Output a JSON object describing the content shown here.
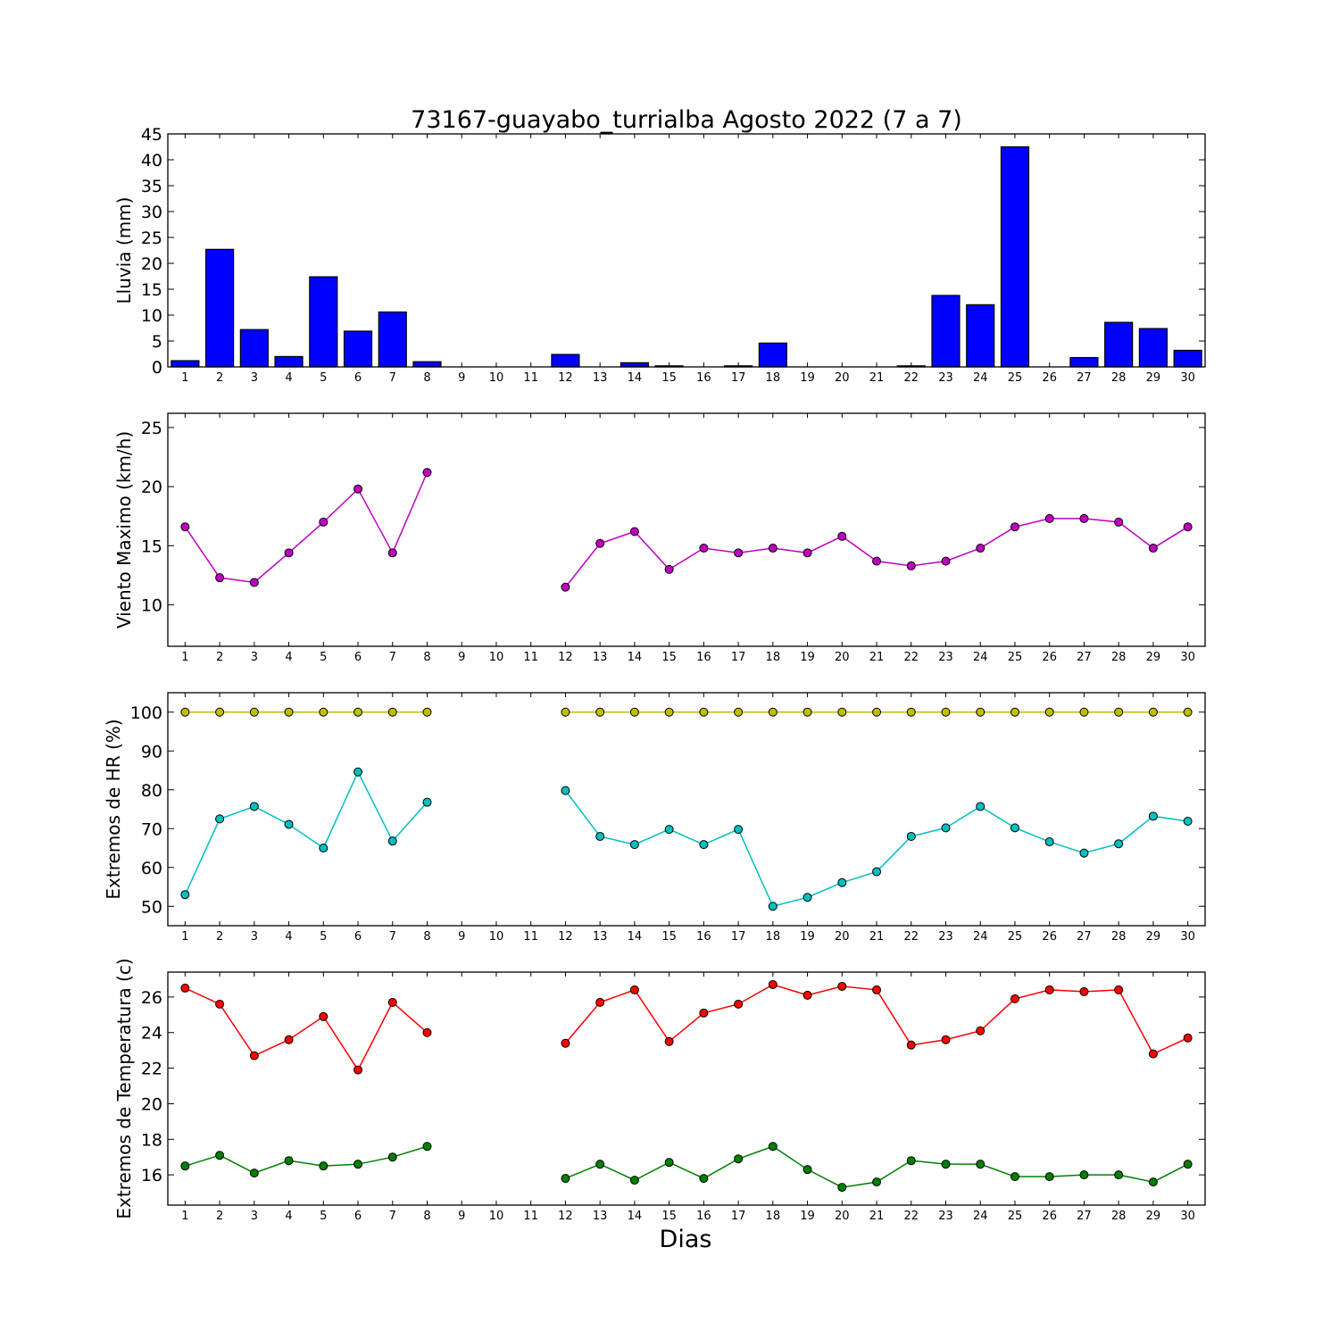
{
  "figure": {
    "title": "73167-guayabo_turrialba Agosto 2022  (7 a 7)",
    "xlabel": "Dias"
  },
  "chart_data": [
    {
      "type": "bar",
      "ylabel": "Lluvia (mm)",
      "ylim": [
        0,
        45
      ],
      "yticks": [
        0,
        5,
        10,
        15,
        20,
        25,
        30,
        35,
        40,
        45
      ],
      "xlim": [
        0.5,
        30.5
      ],
      "categories": [
        1,
        2,
        3,
        4,
        5,
        6,
        7,
        8,
        9,
        10,
        11,
        12,
        13,
        14,
        15,
        16,
        17,
        18,
        19,
        20,
        21,
        22,
        23,
        24,
        25,
        26,
        27,
        28,
        29,
        30
      ],
      "series": [
        {
          "color": "#0000ff",
          "values": [
            1.2,
            22.7,
            7.2,
            2.0,
            17.4,
            6.9,
            10.6,
            1.0,
            0,
            0,
            0,
            2.4,
            0,
            0.8,
            0.2,
            0,
            0.2,
            4.6,
            0,
            0,
            0,
            0.2,
            13.8,
            12.0,
            42.5,
            0,
            1.8,
            8.6,
            7.4,
            3.2
          ]
        }
      ],
      "grid": false
    },
    {
      "type": "line",
      "ylabel": "Viento Maximo (km/h)",
      "ylim": [
        6.5,
        26.2
      ],
      "yticks": [
        10,
        15,
        20,
        25
      ],
      "xlim": [
        0.5,
        30.5
      ],
      "series": [
        {
          "color": "#bf00bf",
          "x": [
            1,
            2,
            3,
            4,
            5,
            6,
            7,
            8,
            9,
            10,
            11,
            12,
            13,
            14,
            15,
            16,
            17,
            18,
            19,
            20,
            21,
            22,
            23,
            24,
            25,
            26,
            27,
            28,
            29,
            30
          ],
          "y": [
            16.6,
            12.3,
            11.9,
            14.4,
            17.0,
            19.8,
            14.4,
            21.2,
            null,
            null,
            null,
            11.5,
            15.2,
            16.2,
            13.0,
            14.8,
            14.4,
            14.8,
            14.4,
            15.8,
            13.7,
            13.3,
            13.7,
            14.8,
            16.6,
            17.3,
            17.3,
            17.0,
            14.8,
            16.6
          ]
        }
      ],
      "grid": false
    },
    {
      "type": "line",
      "ylabel": "Extremos de HR (%)",
      "ylim": [
        45,
        105
      ],
      "yticks": [
        50,
        60,
        70,
        80,
        90,
        100
      ],
      "xlim": [
        0.5,
        30.5
      ],
      "series": [
        {
          "color": "#bfbf00",
          "x": [
            1,
            2,
            3,
            4,
            5,
            6,
            7,
            8,
            9,
            10,
            11,
            12,
            13,
            14,
            15,
            16,
            17,
            18,
            19,
            20,
            21,
            22,
            23,
            24,
            25,
            26,
            27,
            28,
            29,
            30
          ],
          "y": [
            100,
            100,
            100,
            100,
            100,
            100,
            100,
            100,
            null,
            null,
            null,
            100,
            100,
            100,
            100,
            100,
            100,
            100,
            100,
            100,
            100,
            100,
            100,
            100,
            100,
            100,
            100,
            100,
            100,
            100
          ]
        },
        {
          "color": "#00bfbf",
          "x": [
            1,
            2,
            3,
            4,
            5,
            6,
            7,
            8,
            9,
            10,
            11,
            12,
            13,
            14,
            15,
            16,
            17,
            18,
            19,
            20,
            21,
            22,
            23,
            24,
            25,
            26,
            27,
            28,
            29,
            30
          ],
          "y": [
            53,
            72.5,
            75.7,
            71.1,
            65,
            84.6,
            66.8,
            76.8,
            null,
            null,
            null,
            79.8,
            68,
            65.9,
            69.8,
            65.9,
            69.8,
            50,
            52.3,
            56.1,
            58.9,
            68,
            70.2,
            75.7,
            70.2,
            66.6,
            63.7,
            66.1,
            73.2,
            71.9
          ]
        }
      ],
      "grid": false
    },
    {
      "type": "line",
      "ylabel": "Extremos de Temperatura (c)",
      "ylim": [
        14.3,
        27.4
      ],
      "yticks": [
        16,
        18,
        20,
        22,
        24,
        26
      ],
      "xlim": [
        0.5,
        30.5
      ],
      "series": [
        {
          "color": "#ff0000",
          "x": [
            1,
            2,
            3,
            4,
            5,
            6,
            7,
            8,
            9,
            10,
            11,
            12,
            13,
            14,
            15,
            16,
            17,
            18,
            19,
            20,
            21,
            22,
            23,
            24,
            25,
            26,
            27,
            28,
            29,
            30
          ],
          "y": [
            26.5,
            25.6,
            22.7,
            23.6,
            24.9,
            21.9,
            25.7,
            24.0,
            null,
            null,
            null,
            23.4,
            25.7,
            26.4,
            23.5,
            25.1,
            25.6,
            26.7,
            26.1,
            26.6,
            26.4,
            23.3,
            23.6,
            24.1,
            25.9,
            26.4,
            26.3,
            26.4,
            22.8,
            23.7
          ]
        },
        {
          "color": "#008000",
          "x": [
            1,
            2,
            3,
            4,
            5,
            6,
            7,
            8,
            9,
            10,
            11,
            12,
            13,
            14,
            15,
            16,
            17,
            18,
            19,
            20,
            21,
            22,
            23,
            24,
            25,
            26,
            27,
            28,
            29,
            30
          ],
          "y": [
            16.5,
            17.1,
            16.1,
            16.8,
            16.5,
            16.6,
            17.0,
            17.6,
            null,
            null,
            null,
            15.8,
            16.6,
            15.7,
            16.7,
            15.8,
            16.9,
            17.6,
            16.3,
            15.3,
            15.6,
            16.8,
            16.6,
            16.6,
            15.9,
            15.9,
            16.0,
            16.0,
            15.6,
            16.6
          ]
        }
      ],
      "grid": false
    }
  ]
}
